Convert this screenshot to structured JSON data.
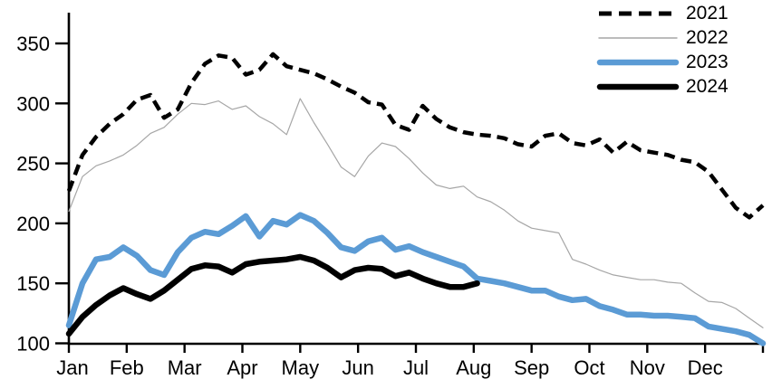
{
  "chart_data": {
    "type": "line",
    "title": "",
    "xlabel": "",
    "ylabel": "",
    "grid": false,
    "legend_position": "top-right",
    "x_tick_labels": [
      "Jan",
      "Feb",
      "Mar",
      "Apr",
      "May",
      "Jun",
      "Jul",
      "Aug",
      "Sep",
      "Oct",
      "Nov",
      "Dec"
    ],
    "y_ticks": [
      100,
      150,
      200,
      250,
      300,
      350
    ],
    "ylim": [
      100,
      350
    ],
    "points_per_year": 52,
    "axis_color": "#000000",
    "series": [
      {
        "name": "2021",
        "line": "dashed",
        "color": "#000000",
        "width": 4.5,
        "values": [
          227,
          257,
          272,
          283,
          291,
          303,
          307,
          288,
          295,
          317,
          333,
          340,
          338,
          324,
          328,
          341,
          331,
          328,
          325,
          320,
          314,
          309,
          301,
          299,
          282,
          278,
          298,
          287,
          280,
          276,
          274,
          273,
          271,
          266,
          264,
          273,
          275,
          267,
          265,
          270,
          259,
          268,
          261,
          259,
          257,
          253,
          251,
          243,
          228,
          213,
          205,
          215
        ]
      },
      {
        "name": "2022",
        "line": "solid",
        "color": "#a6a6a6",
        "width": 1.2,
        "values": [
          210,
          239,
          248,
          252,
          257,
          265,
          275,
          280,
          291,
          300,
          299,
          302,
          295,
          298,
          289,
          283,
          274,
          304,
          284,
          266,
          247,
          239,
          256,
          267,
          264,
          254,
          242,
          232,
          229,
          231,
          222,
          218,
          211,
          202,
          196,
          194,
          192,
          170,
          166,
          161,
          157,
          155,
          153,
          153,
          151,
          150,
          142,
          135,
          134,
          129,
          121,
          113
        ]
      },
      {
        "name": "2023",
        "line": "solid",
        "color": "#5b9bd5",
        "width": 6.5,
        "values": [
          115,
          150,
          170,
          172,
          180,
          173,
          161,
          157,
          176,
          188,
          193,
          191,
          198,
          206,
          189,
          202,
          199,
          207,
          202,
          192,
          180,
          177,
          185,
          188,
          178,
          181,
          176,
          172,
          168,
          164,
          154,
          152,
          150,
          147,
          144,
          144,
          139,
          136,
          137,
          131,
          128,
          124,
          124,
          123,
          123,
          122,
          121,
          114,
          112,
          110,
          107,
          100
        ]
      },
      {
        "name": "2024",
        "line": "solid",
        "color": "#000000",
        "width": 6.5,
        "values": [
          108,
          122,
          132,
          140,
          146,
          141,
          137,
          144,
          153,
          162,
          165,
          164,
          159,
          166,
          168,
          169,
          170,
          172,
          169,
          163,
          155,
          161,
          163,
          162,
          156,
          159,
          154,
          150,
          147,
          147,
          150
        ]
      }
    ]
  }
}
